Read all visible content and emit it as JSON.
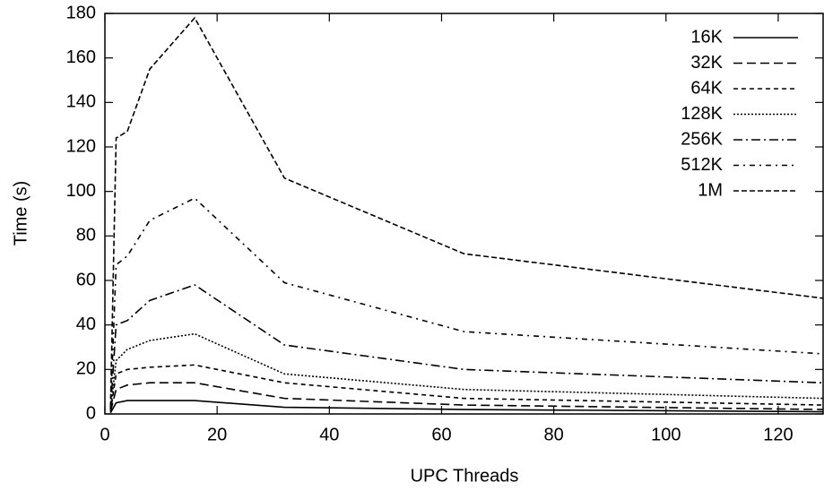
{
  "chart_data": {
    "type": "line",
    "x_label": "UPC Threads",
    "y_label": "Time (s)",
    "x": [
      1,
      2,
      4,
      8,
      16,
      32,
      64,
      128
    ],
    "series": [
      {
        "name": "16K",
        "color": "#000000",
        "dash": "none",
        "values": [
          0.5,
          5,
          6,
          6,
          6,
          3,
          2,
          1
        ]
      },
      {
        "name": "32K",
        "color": "#000000",
        "dash": "10,5",
        "values": [
          1,
          11,
          13,
          14,
          14,
          7,
          4,
          2
        ]
      },
      {
        "name": "64K",
        "color": "#000000",
        "dash": "5,4",
        "values": [
          1,
          18,
          20,
          21,
          22,
          14,
          7,
          4
        ]
      },
      {
        "name": "128K",
        "color": "#000000",
        "dash": "2,2",
        "values": [
          1.5,
          24,
          29,
          33,
          36,
          18,
          11,
          7
        ]
      },
      {
        "name": "256K",
        "color": "#000000",
        "dash": "10,4,2,4",
        "values": [
          2,
          40,
          42,
          51,
          58,
          31,
          20,
          14
        ]
      },
      {
        "name": "512K",
        "color": "#000000",
        "dash": "6,5,2,5",
        "values": [
          2.5,
          67,
          71,
          87,
          97,
          59,
          37,
          27
        ]
      },
      {
        "name": "1M",
        "color": "#000000",
        "dash": "6,3",
        "values": [
          3,
          124,
          127,
          155,
          178,
          106,
          72,
          52
        ]
      }
    ],
    "xlim": [
      0,
      128
    ],
    "xticks": [
      0,
      20,
      40,
      60,
      80,
      100,
      120
    ],
    "ylim": [
      0,
      180
    ],
    "yticks": [
      0,
      20,
      40,
      60,
      80,
      100,
      120,
      140,
      160,
      180
    ],
    "grid": false,
    "legend": "top-right"
  }
}
